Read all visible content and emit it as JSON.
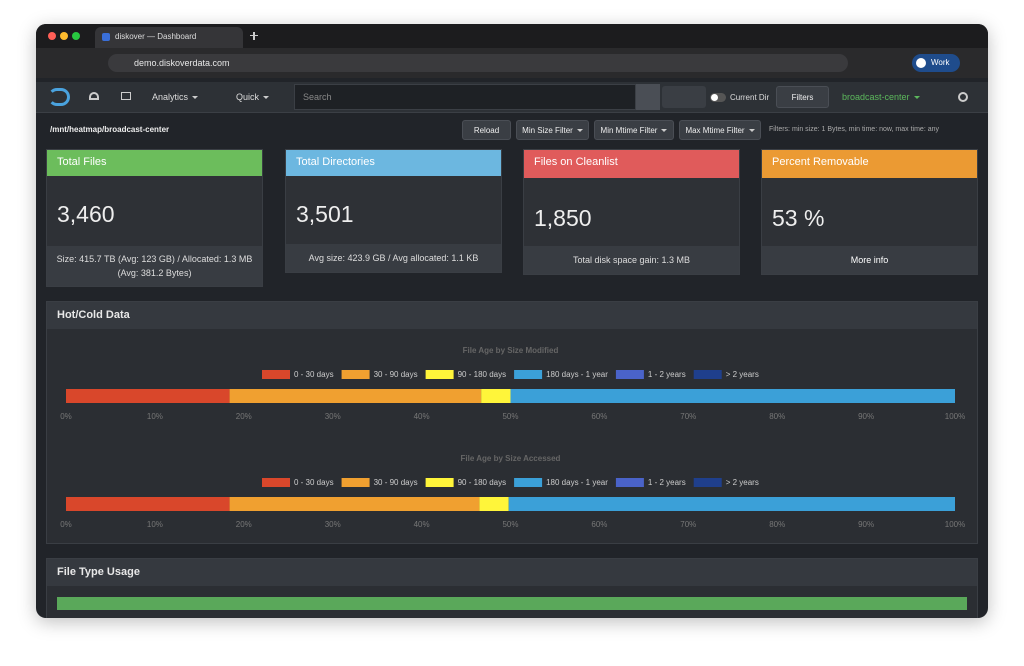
{
  "browser": {
    "tab_title": "diskover — Dashboard",
    "url": "demo.diskoverdata.com",
    "profile": "Work"
  },
  "navbar": {
    "analytics": "Analytics",
    "quick": "Quick",
    "search_placeholder": "Search",
    "current_dir": "Current Dir",
    "filters": "Filters",
    "index": "broadcast-center"
  },
  "toolbar": {
    "path": "/mnt/heatmap/broadcast-center",
    "reload": "Reload",
    "min_size": "Min Size Filter",
    "min_mtime": "Min Mtime Filter",
    "max_mtime": "Max Mtime Filter",
    "filters_text": "Filters: min size: 1 Bytes, min time: now, max time: any"
  },
  "cards": [
    {
      "title": "Total Files",
      "value": "3,460",
      "footer": "Size: 415.7 TB (Avg: 123 GB) / Allocated: 1.3 MB (Avg: 381.2 Bytes)"
    },
    {
      "title": "Total Directories",
      "value": "3,501",
      "footer": "Avg size: 423.9 GB / Avg allocated: 1.1 KB"
    },
    {
      "title": "Files on Cleanlist",
      "value": "1,850",
      "footer": "Total disk space gain: 1.3 MB"
    },
    {
      "title": "Percent Removable",
      "value": "53 %",
      "footer": "More info"
    }
  ],
  "hot_cold": {
    "title": "Hot/Cold Data"
  },
  "chart_data": [
    {
      "type": "stacked-bar",
      "title": "File Age by Size Modified",
      "xlim": [
        0,
        100
      ],
      "xticks": [
        {
          "value": 0,
          "label": "0%"
        },
        {
          "value": 10,
          "label": "10%"
        },
        {
          "value": 20,
          "label": "20%"
        },
        {
          "value": 30,
          "label": "30%"
        },
        {
          "value": 40,
          "label": "40%"
        },
        {
          "value": 50,
          "label": "50%"
        },
        {
          "value": 60,
          "label": "60%"
        },
        {
          "value": 70,
          "label": "70%"
        },
        {
          "value": 80,
          "label": "80%"
        },
        {
          "value": 90,
          "label": "90%"
        },
        {
          "value": 100,
          "label": "100%"
        }
      ],
      "series": [
        {
          "name": "0 - 30 days",
          "color": "#d9472b",
          "values": [
            18.4
          ]
        },
        {
          "name": "30 - 90 days",
          "color": "#f0a030",
          "values": [
            28.3
          ]
        },
        {
          "name": "90 - 180 days",
          "color": "#fff53a",
          "values": [
            3.3
          ]
        },
        {
          "name": "180 days - 1 year",
          "color": "#3ba0d8",
          "values": [
            50.0
          ]
        },
        {
          "name": "1 - 2 years",
          "color": "#4a63c9",
          "values": [
            0
          ]
        },
        {
          "name": "> 2 years",
          "color": "#1f3f8c",
          "values": [
            0
          ]
        }
      ]
    },
    {
      "type": "stacked-bar",
      "title": "File Age by Size Accessed",
      "xlim": [
        0,
        100
      ],
      "xticks": [
        {
          "value": 0,
          "label": "0%"
        },
        {
          "value": 10,
          "label": "10%"
        },
        {
          "value": 20,
          "label": "20%"
        },
        {
          "value": 30,
          "label": "30%"
        },
        {
          "value": 40,
          "label": "40%"
        },
        {
          "value": 50,
          "label": "50%"
        },
        {
          "value": 60,
          "label": "60%"
        },
        {
          "value": 70,
          "label": "70%"
        },
        {
          "value": 80,
          "label": "80%"
        },
        {
          "value": 90,
          "label": "90%"
        },
        {
          "value": 100,
          "label": "100%"
        }
      ],
      "series": [
        {
          "name": "0 - 30 days",
          "color": "#d9472b",
          "values": [
            18.4
          ]
        },
        {
          "name": "30 - 90 days",
          "color": "#f0a030",
          "values": [
            28.1
          ]
        },
        {
          "name": "90 - 180 days",
          "color": "#fff53a",
          "values": [
            3.3
          ]
        },
        {
          "name": "180 days - 1 year",
          "color": "#3ba0d8",
          "values": [
            50.2
          ]
        },
        {
          "name": "1 - 2 years",
          "color": "#4a63c9",
          "values": [
            0
          ]
        },
        {
          "name": "> 2 years",
          "color": "#1f3f8c",
          "values": [
            0
          ]
        }
      ]
    }
  ],
  "file_type_usage": {
    "title": "File Type Usage"
  }
}
